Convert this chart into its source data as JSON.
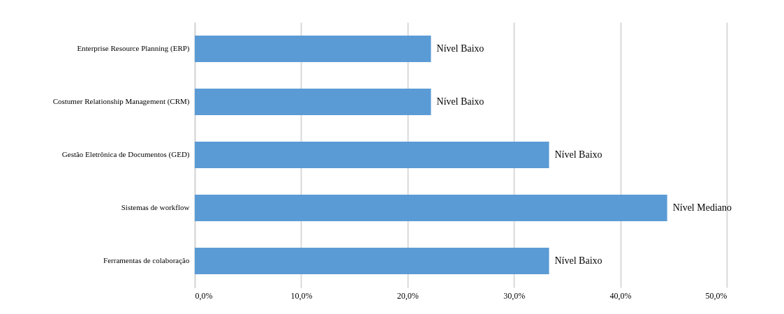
{
  "chart_data": {
    "type": "bar",
    "orientation": "horizontal",
    "categories": [
      "Enterprise Resource Planning (ERP)",
      "Costumer Relationship Management (CRM)",
      "Gestão Eletrônica de Documentos (GED)",
      "Sistemas de workflow",
      "Ferramentas de colaboração"
    ],
    "values": [
      22.2,
      22.2,
      33.3,
      44.4,
      33.3
    ],
    "value_labels": [
      "Nível Baixo",
      "Nível Baixo",
      "Nível Baixo",
      "Nível Mediano",
      "Nível Baixo"
    ],
    "color": "#5b9bd5",
    "xlim": [
      0,
      50
    ],
    "xticks": [
      {
        "value": 0,
        "label": "0,0%"
      },
      {
        "value": 10,
        "label": "10,0%"
      },
      {
        "value": 20,
        "label": "20,0%"
      },
      {
        "value": 30,
        "label": "30,0%"
      },
      {
        "value": 40,
        "label": "40,0%"
      },
      {
        "value": 50,
        "label": "50,0%"
      }
    ],
    "grid": "x"
  }
}
